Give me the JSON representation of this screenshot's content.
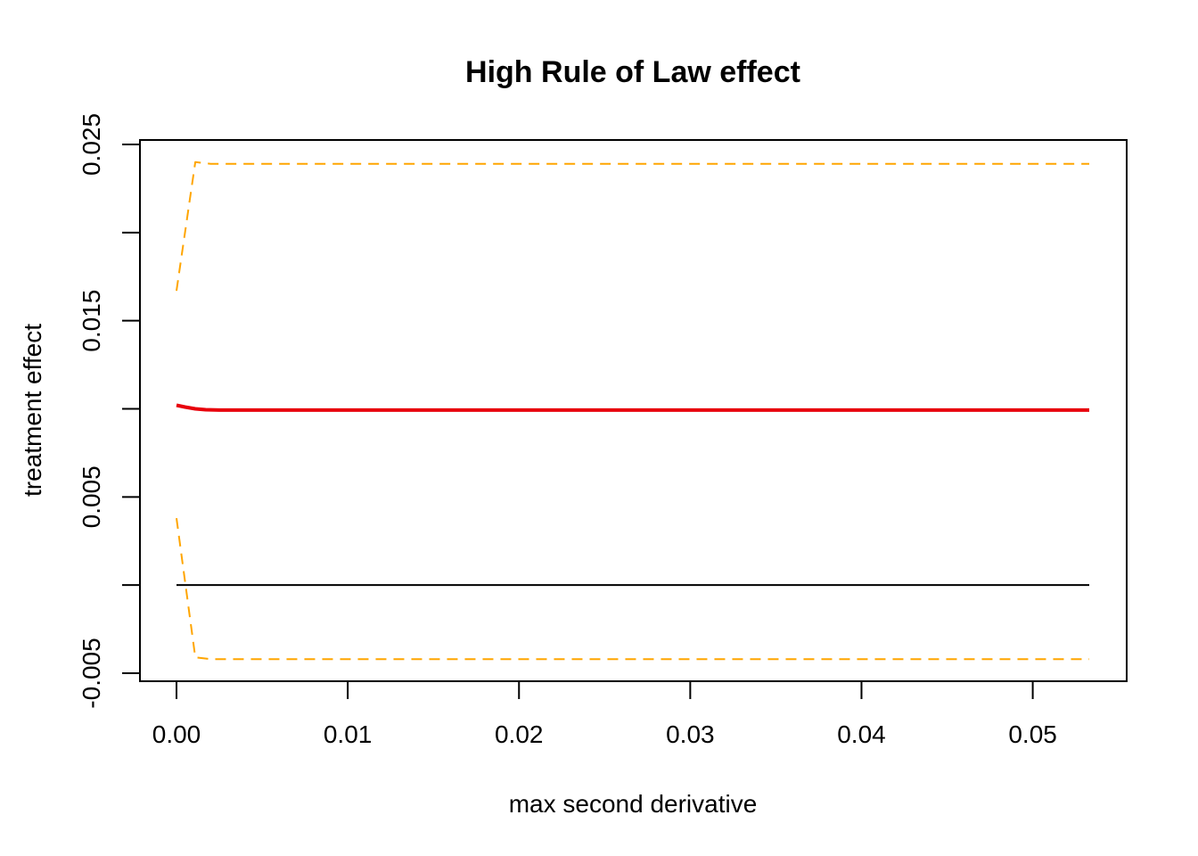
{
  "chart_data": {
    "type": "line",
    "title": "High Rule of Law effect",
    "xlabel": "max second derivative",
    "ylabel": "treatment effect",
    "xlim": [
      0,
      0.0533
    ],
    "ylim": [
      -0.005,
      0.025
    ],
    "x_ticks": [
      0,
      0.01,
      0.02,
      0.03,
      0.04,
      0.05
    ],
    "x_tick_labels": [
      "0.00",
      "0.01",
      "0.02",
      "0.03",
      "0.04",
      "0.05"
    ],
    "y_ticks": [
      -0.005,
      0.0,
      0.005,
      0.01,
      0.015,
      0.02,
      0.025
    ],
    "y_tick_labels": [
      "-0.005",
      "",
      "0.005",
      "",
      "0.015",
      "",
      "0.025"
    ],
    "grid": false,
    "reference_line": {
      "y": 0,
      "color": "#000000"
    },
    "series": [
      {
        "role": "estimate",
        "color": "#e8000b",
        "style": "solid",
        "x": [
          0,
          0.0005,
          0.0011,
          0.0017,
          0.0025,
          0.01,
          0.02,
          0.03,
          0.04,
          0.05,
          0.0533
        ],
        "y": [
          0.0102,
          0.0101,
          0.01,
          0.00995,
          0.00993,
          0.00993,
          0.00993,
          0.00993,
          0.00993,
          0.00993,
          0.00993
        ]
      },
      {
        "role": "upper-bound",
        "color": "#ffa500",
        "style": "dashed",
        "x": [
          0,
          0.0011,
          0.002,
          0.01,
          0.02,
          0.03,
          0.04,
          0.05,
          0.0533
        ],
        "y": [
          0.0167,
          0.024,
          0.0239,
          0.0239,
          0.0239,
          0.0239,
          0.0239,
          0.0239,
          0.0239
        ]
      },
      {
        "role": "lower-bound",
        "color": "#ffa500",
        "style": "dashed",
        "x": [
          0,
          0.0011,
          0.002,
          0.01,
          0.02,
          0.03,
          0.04,
          0.05,
          0.0533
        ],
        "y": [
          0.0038,
          -0.0041,
          -0.0042,
          -0.0042,
          -0.0042,
          -0.0042,
          -0.0042,
          -0.0042,
          -0.0042
        ]
      }
    ]
  }
}
